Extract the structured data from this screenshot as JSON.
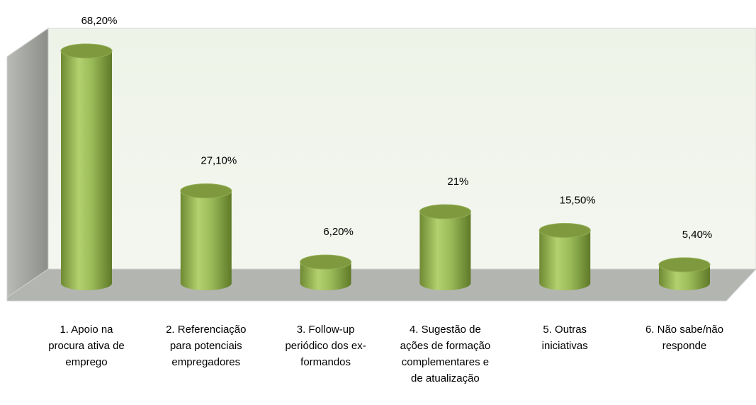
{
  "chart_data": {
    "type": "bar",
    "categories": [
      "1. Apoio na procura ativa de emprego",
      "2. Referenciação para potenciais empregadores",
      "3. Follow-up periódico dos ex-formandos",
      "4. Sugestão de ações de formação complementares e de atualização",
      "5. Outras iniciativas",
      "6. Não sabe/não responde"
    ],
    "values": [
      68.2,
      27.1,
      6.2,
      21,
      15.5,
      5.4
    ],
    "value_labels": [
      "68,20%",
      "27,10%",
      "6,20%",
      "21%",
      "15,50%",
      "5,40%"
    ],
    "color": "#9bbb59"
  }
}
